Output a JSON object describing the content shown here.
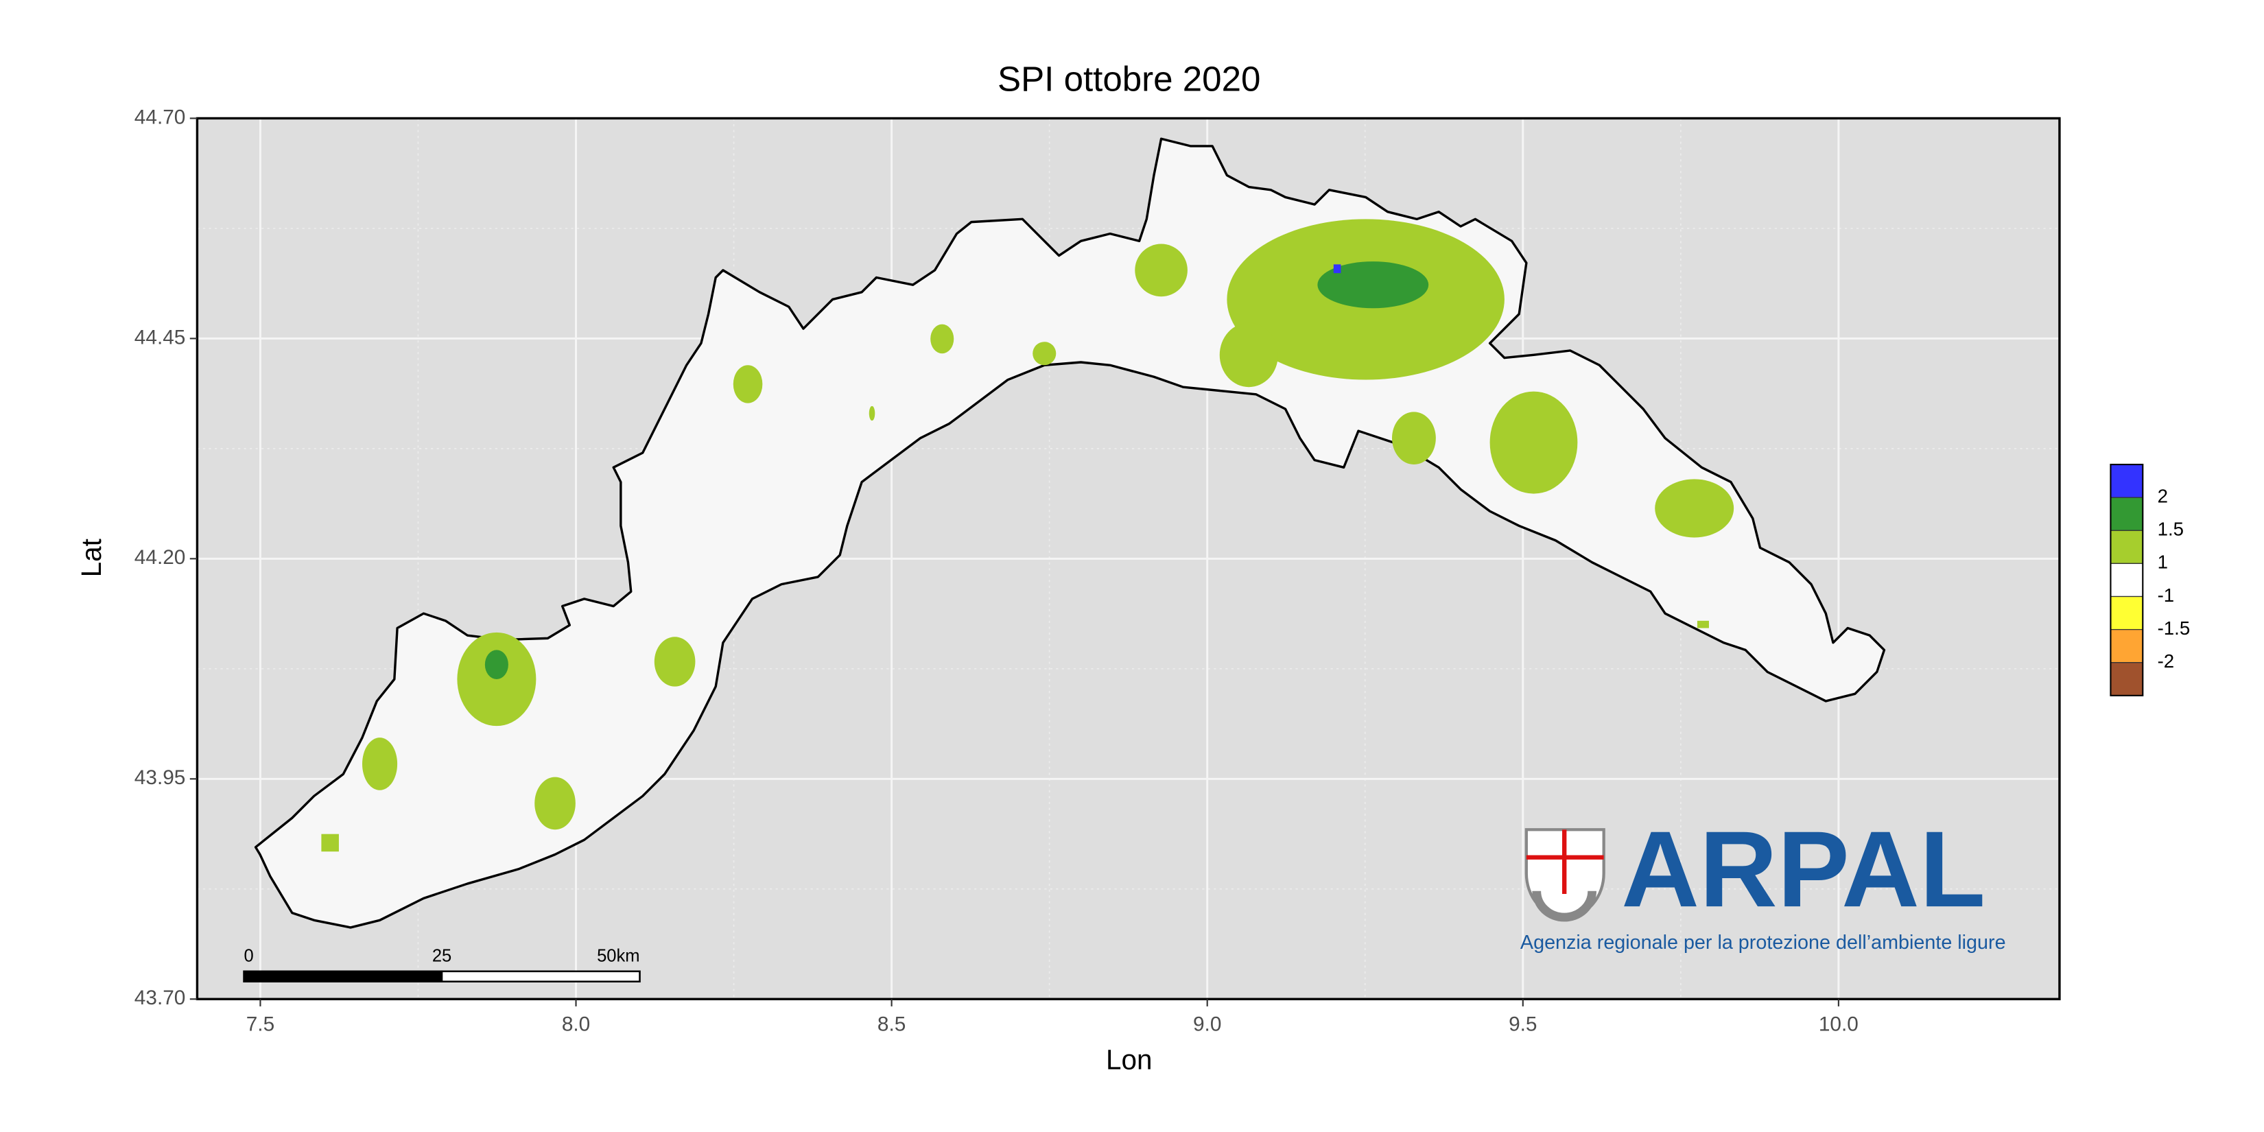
{
  "chart_data": {
    "type": "map",
    "title": "SPI ottobre 2020",
    "x_label": "Lon",
    "y_label": "Lat",
    "xlim": [
      7.4,
      10.35
    ],
    "ylim": [
      43.7,
      44.7
    ],
    "xticks": [
      7.5,
      {
        "value": 8,
        "label": "8.0"
      },
      8.5,
      {
        "value": 9,
        "label": "9.0"
      },
      9.5,
      {
        "value": 10,
        "label": "10.0"
      }
    ],
    "yticks": [
      {
        "value": 43.7,
        "label": "43.70"
      },
      43.95,
      {
        "value": 44.2,
        "label": "44.20"
      },
      44.45,
      {
        "value": 44.7,
        "label": "44.70"
      }
    ],
    "grid": true,
    "legend": {
      "position": "right",
      "colors": [
        "#3333ff",
        "#339933",
        "#a6ce2d",
        "#ffffff",
        "#ffff33",
        "#ffa533",
        "#a0522d"
      ],
      "breaks": [
        2,
        1.5,
        1,
        -1,
        -1.5,
        -2
      ]
    },
    "scale_bar": {
      "ticks": [
        0,
        25,
        {
          "value": 50,
          "label": "50km"
        }
      ]
    }
  },
  "logo": {
    "name": "ARPAL",
    "subtitle": "Agenzia regionale per la protezione dell’ambiente ligure"
  }
}
